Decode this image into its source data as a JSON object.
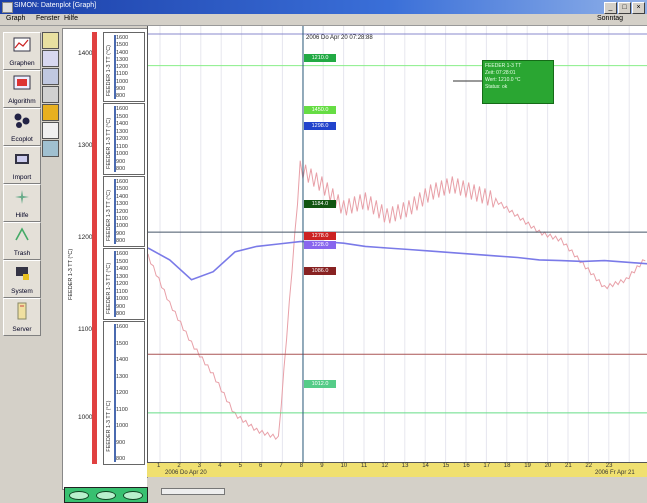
{
  "window": {
    "title": "SIMON: Datenplot [Graph]"
  },
  "menu": {
    "items": [
      "Graph",
      "Fenster",
      "Hilfe"
    ],
    "right": "Sonntag"
  },
  "toolbar": {
    "buttons": [
      {
        "label": "Graphen",
        "icon": "graph-icon"
      },
      {
        "label": "Algorithm",
        "icon": "algorithm-icon"
      },
      {
        "label": "Ecoplot",
        "icon": "ecoplot-icon"
      },
      {
        "label": "Import",
        "icon": "import-icon"
      },
      {
        "label": "Hilfe",
        "icon": "help-icon"
      },
      {
        "label": "Trash",
        "icon": "trash-icon"
      },
      {
        "label": "System",
        "icon": "system-icon"
      },
      {
        "label": "Server",
        "icon": "server-icon"
      }
    ]
  },
  "main_axis": {
    "title": "FEEDER 1-3 TT (°C)",
    "ticks": [
      "1400",
      "1300",
      "1200",
      "1100",
      "1000"
    ]
  },
  "mini_panels": [
    {
      "title": "FEEDER 1-3 TT (°C)",
      "ticks": [
        "1600",
        "1500",
        "1400",
        "1300",
        "1200",
        "1100",
        "1000",
        "900",
        "800"
      ]
    },
    {
      "title": "FEEDER 1-3 TT (°C)",
      "ticks": [
        "1600",
        "1500",
        "1400",
        "1300",
        "1200",
        "1100",
        "1000",
        "900",
        "800"
      ]
    },
    {
      "title": "FEEDER 1-3 TT (°C)",
      "ticks": [
        "1600",
        "1500",
        "1400",
        "1300",
        "1200",
        "1100",
        "1000",
        "900",
        "800"
      ]
    },
    {
      "title": "FEEDER 1-3 TT (°C)",
      "ticks": [
        "1600",
        "1500",
        "1400",
        "1300",
        "1200",
        "1100",
        "1000",
        "900",
        "800"
      ]
    },
    {
      "title": "FEEDER 1-3 TT (°C)",
      "ticks": [
        "1600",
        "1500",
        "1400",
        "1300",
        "1200",
        "1100",
        "1000",
        "900",
        "800"
      ]
    }
  ],
  "cursor": {
    "label": "2006 Do Apr 20  07:28:88"
  },
  "tags": [
    {
      "text": "1210.0",
      "color": "#22aa44"
    },
    {
      "text": "1450.0",
      "color": "#66dd44"
    },
    {
      "text": "1298.0",
      "color": "#2244cc"
    },
    {
      "text": "1184.0",
      "color": "#115511"
    },
    {
      "text": "1278.0",
      "color": "#cc2222"
    },
    {
      "text": "1228.0",
      "color": "#8866ee"
    },
    {
      "text": "1086.0",
      "color": "#882222"
    },
    {
      "text": "1012.0",
      "color": "#55cc88"
    }
  ],
  "tooltip": {
    "lines": [
      "FEEDER 1-3 TT",
      "Zeit: 07:28:01",
      "Wert: 1210.0 °C",
      "Status: ok"
    ]
  },
  "time_axis": {
    "left_label": "2006 Do Apr 20",
    "right_label": "2006 Fr Apr 21",
    "hours": [
      "1",
      "2",
      "3",
      "4",
      "5",
      "6",
      "7",
      "8",
      "9",
      "10",
      "11",
      "12",
      "13",
      "14",
      "15",
      "16",
      "17",
      "18",
      "19",
      "20",
      "21",
      "22",
      "23"
    ]
  },
  "chart_data": {
    "type": "line",
    "x_label": "",
    "series": [
      {
        "color": "#e8a0a8",
        "values": [
          1210,
          1150,
          1100,
          1060,
          1010,
          990,
          980,
          1320,
          1300,
          1270,
          1280,
          1260,
          1270,
          1290,
          1300,
          1290,
          1280,
          1260,
          1240,
          1230,
          1200,
          1170,
          1180,
          1210
        ]
      },
      {
        "color": "#7a7ae8",
        "values": [
          1220,
          1205,
          1180,
          1190,
          1215,
          1222,
          1225,
          1228,
          1228,
          1226,
          1222,
          1220,
          1218,
          1216,
          1214,
          1212,
          1210,
          1208,
          1205,
          1204,
          1203,
          1204,
          1202,
          1200
        ]
      },
      {
        "color": "#88ee88",
        "values": [
          1450,
          1450,
          1450,
          1450,
          1450,
          1450,
          1450,
          1450,
          1450,
          1450,
          1450,
          1450,
          1450,
          1450,
          1450,
          1450,
          1450,
          1450,
          1450,
          1450,
          1450,
          1450,
          1450,
          1450
        ]
      },
      {
        "color": "#445566",
        "values": [
          1240,
          1240,
          1240,
          1240,
          1240,
          1240,
          1240,
          1240,
          1240,
          1240,
          1240,
          1240,
          1240,
          1240,
          1240,
          1240,
          1240,
          1240,
          1240,
          1240,
          1240,
          1240,
          1240,
          1240
        ]
      },
      {
        "color": "#aa5555",
        "values": [
          1086,
          1086,
          1086,
          1086,
          1086,
          1086,
          1086,
          1086,
          1086,
          1086,
          1086,
          1086,
          1086,
          1086,
          1086,
          1086,
          1086,
          1086,
          1086,
          1086,
          1086,
          1086,
          1086,
          1086
        ]
      },
      {
        "color": "#66dd88",
        "values": [
          1012,
          1012,
          1012,
          1012,
          1012,
          1012,
          1012,
          1012,
          1012,
          1012,
          1012,
          1012,
          1012,
          1012,
          1012,
          1012,
          1012,
          1012,
          1012,
          1012,
          1012,
          1012,
          1012,
          1012
        ]
      }
    ]
  }
}
